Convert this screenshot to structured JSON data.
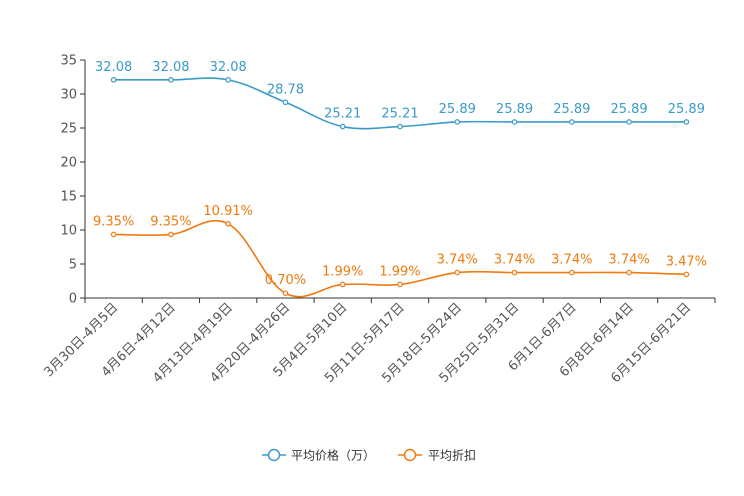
{
  "chart_data": {
    "type": "line",
    "categories": [
      "3月30日-4月5日",
      "4月6日-4月12日",
      "4月13日-4月19日",
      "4月20日-4月26日",
      "5月4日-5月10日",
      "5月11日-5月17日",
      "5月18日-5月24日",
      "5月25日-5月31日",
      "6月1日-6月7日",
      "6月8日-6月14日",
      "6月15日-6月21日"
    ],
    "yticks": [
      0,
      5,
      10,
      15,
      20,
      25,
      30,
      35
    ],
    "ylim": [
      0,
      35
    ],
    "series": [
      {
        "name": "平均价格（万）",
        "color": "#3a9bc8",
        "values": [
          32.08,
          32.08,
          32.08,
          28.78,
          25.21,
          25.21,
          25.89,
          25.89,
          25.89,
          25.89,
          25.89
        ],
        "labels": [
          "32.08",
          "32.08",
          "32.08",
          "28.78",
          "25.21",
          "25.21",
          "25.89",
          "25.89",
          "25.89",
          "25.89",
          "25.89"
        ]
      },
      {
        "name": "平均折扣",
        "color": "#f07a10",
        "values": [
          9.35,
          9.35,
          10.91,
          0.7,
          1.99,
          1.99,
          3.74,
          3.74,
          3.74,
          3.74,
          3.47
        ],
        "labels": [
          "9.35%",
          "9.35%",
          "10.91%",
          "0.70%",
          "1.99%",
          "1.99%",
          "3.74%",
          "3.74%",
          "3.74%",
          "3.74%",
          "3.47%"
        ]
      }
    ],
    "legend": [
      "平均价格（万）",
      "平均折扣"
    ],
    "legend_position": "bottom-center"
  }
}
